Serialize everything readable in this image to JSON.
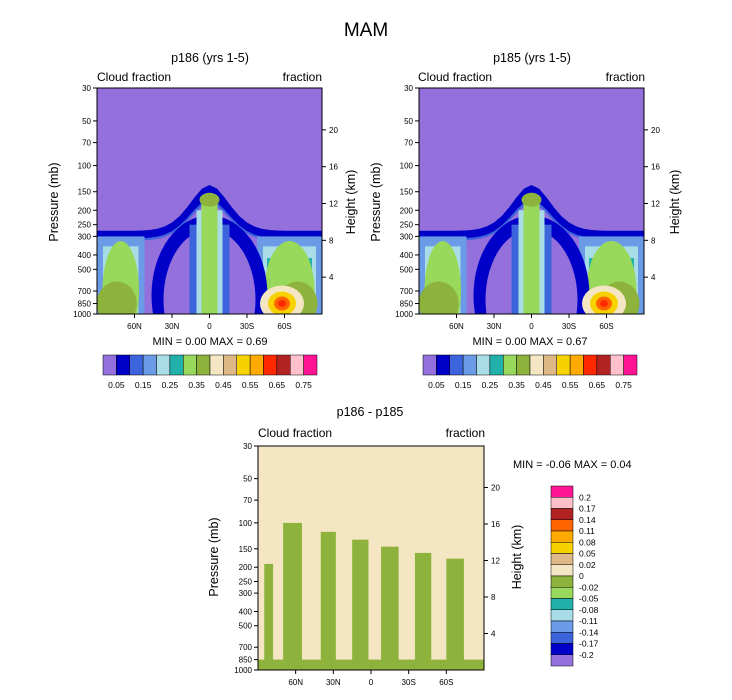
{
  "page_title": "MAM",
  "palette": {
    "contour12": [
      "#9370db",
      "#0000c8",
      "#3c64dc",
      "#6b9be6",
      "#a8dce6",
      "#20b2aa",
      "#98d85a",
      "#8db33c",
      "#f5e6c3",
      "#deb887",
      "#f5d200",
      "#ffaa00",
      "#ff6400",
      "#ff2800",
      "#b22222",
      "#ffc0cb",
      "#ff1493"
    ],
    "upper_fill_order": [
      "#9370db",
      "#0000c8",
      "#3c64dc",
      "#6b9be6",
      "#a8dce6",
      "#20b2aa",
      "#98d85a",
      "#8db33c",
      "#f5e6c3",
      "#deb887",
      "#f5d200",
      "#ffaa00",
      "#ff2800",
      "#b22222",
      "#ffc0cb",
      "#ff1493"
    ],
    "diff_fill_order": [
      "#9370db",
      "#0000c8",
      "#3c64dc",
      "#6b9be6",
      "#a8dce6",
      "#20b2aa",
      "#98d85a",
      "#8db33c",
      "#f5e6c3",
      "#deb887",
      "#f5d200",
      "#ffaa00",
      "#ff6400",
      "#b22222",
      "#ffc0cb",
      "#ff1493"
    ]
  },
  "chart_data": [
    {
      "type": "heatmap",
      "title": "p186 (yrs 1-5)",
      "left_label": "Cloud fraction",
      "right_label": "fraction",
      "ylabel": "Pressure (mb)",
      "y2label": "Height (km)",
      "pressure_ticks": [
        "30",
        "50",
        "70",
        "100",
        "150",
        "200",
        "250",
        "300",
        "400",
        "500",
        "700",
        "850",
        "1000"
      ],
      "pressure_values": [
        30,
        50,
        70,
        100,
        150,
        200,
        250,
        300,
        400,
        500,
        700,
        850,
        1000
      ],
      "height_ticks": [
        "20",
        "16",
        "12",
        "8",
        "4"
      ],
      "height_values": [
        20,
        16,
        12,
        8,
        4
      ],
      "lat_ticks": [
        "60N",
        "30N",
        "0",
        "30S",
        "60S"
      ],
      "lat_values": [
        60,
        30,
        0,
        -30,
        -60
      ],
      "xlim": [
        90,
        -90
      ],
      "ylim": [
        1000,
        30
      ],
      "min_max_text": "MIN =   0.00   MAX =   0.69",
      "colorbar_labels": [
        "0.05",
        "0.15",
        "0.25",
        "0.35",
        "0.45",
        "0.55",
        "0.65",
        "0.75"
      ],
      "colorbar_levels": [
        0.05,
        0.1,
        0.15,
        0.2,
        0.25,
        0.3,
        0.35,
        0.4,
        0.45,
        0.5,
        0.55,
        0.6,
        0.65,
        0.7,
        0.75
      ]
    },
    {
      "type": "heatmap",
      "title": "p185 (yrs 1-5)",
      "left_label": "Cloud fraction",
      "right_label": "fraction",
      "ylabel": "Pressure (mb)",
      "y2label": "Height (km)",
      "pressure_ticks": [
        "30",
        "50",
        "70",
        "100",
        "150",
        "200",
        "250",
        "300",
        "400",
        "500",
        "700",
        "850",
        "1000"
      ],
      "pressure_values": [
        30,
        50,
        70,
        100,
        150,
        200,
        250,
        300,
        400,
        500,
        700,
        850,
        1000
      ],
      "height_ticks": [
        "20",
        "16",
        "12",
        "8",
        "4"
      ],
      "height_values": [
        20,
        16,
        12,
        8,
        4
      ],
      "lat_ticks": [
        "60N",
        "30N",
        "0",
        "30S",
        "60S"
      ],
      "lat_values": [
        60,
        30,
        0,
        -30,
        -60
      ],
      "xlim": [
        90,
        -90
      ],
      "ylim": [
        1000,
        30
      ],
      "min_max_text": "MIN =   0.00   MAX =   0.67",
      "colorbar_labels": [
        "0.05",
        "0.15",
        "0.25",
        "0.35",
        "0.45",
        "0.55",
        "0.65",
        "0.75"
      ],
      "colorbar_levels": [
        0.05,
        0.1,
        0.15,
        0.2,
        0.25,
        0.3,
        0.35,
        0.4,
        0.45,
        0.5,
        0.55,
        0.6,
        0.65,
        0.7,
        0.75
      ]
    },
    {
      "type": "heatmap",
      "title": "p186 - p185",
      "left_label": "Cloud fraction",
      "right_label": "fraction",
      "ylabel": "Pressure (mb)",
      "y2label": "Height (km)",
      "pressure_ticks": [
        "30",
        "50",
        "70",
        "100",
        "150",
        "200",
        "250",
        "300",
        "400",
        "500",
        "700",
        "850",
        "1000"
      ],
      "pressure_values": [
        30,
        50,
        70,
        100,
        150,
        200,
        250,
        300,
        400,
        500,
        700,
        850,
        1000
      ],
      "height_ticks": [
        "20",
        "16",
        "12",
        "8",
        "4"
      ],
      "height_values": [
        20,
        16,
        12,
        8,
        4
      ],
      "lat_ticks": [
        "60N",
        "30N",
        "0",
        "30S",
        "60S"
      ],
      "lat_values": [
        60,
        30,
        0,
        -30,
        -60
      ],
      "xlim": [
        90,
        -90
      ],
      "ylim": [
        1000,
        30
      ],
      "min_max_text": "MIN =  -0.06   MAX =   0.04",
      "colorbar_labels": [
        "0.2",
        "0.17",
        "0.14",
        "0.11",
        "0.08",
        "0.05",
        "0.02",
        "0",
        "-0.02",
        "-0.05",
        "-0.08",
        "-0.11",
        "-0.14",
        "-0.17",
        "-0.2"
      ],
      "colorbar_levels": [
        0.2,
        0.17,
        0.14,
        0.11,
        0.08,
        0.05,
        0.02,
        0,
        -0.02,
        -0.05,
        -0.08,
        -0.11,
        -0.14,
        -0.17,
        -0.2
      ]
    }
  ]
}
